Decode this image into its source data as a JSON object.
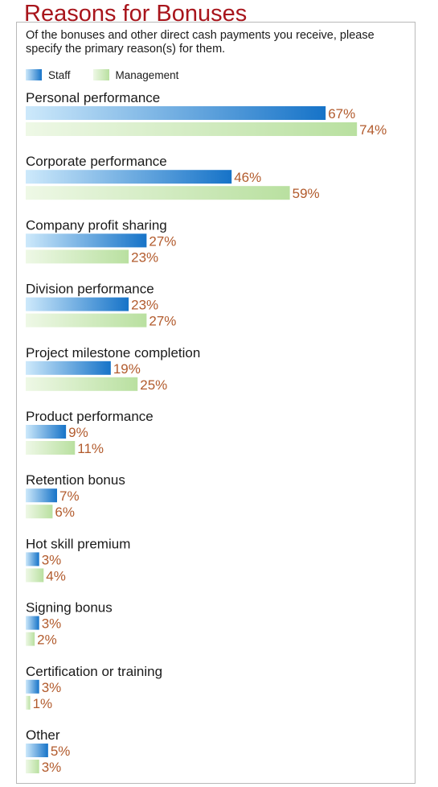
{
  "title": "Reasons for Bonuses",
  "subtitle": "Of the bonuses and other direct cash payments you receive, please specify the primary reason(s) for them.",
  "colors": {
    "title": "#a8151c",
    "staff_dark": "#1673c8",
    "staff_light": "#cde9fb",
    "mgmt_dark": "#b9e0a0",
    "mgmt_light": "#eef8e6",
    "value_label": "#b25b2d"
  },
  "chart_data": {
    "type": "bar",
    "orientation": "horizontal",
    "categories": [
      "Personal performance",
      "Corporate performance",
      "Company profit sharing",
      "Division performance",
      "Project milestone completion",
      "Product performance",
      "Retention bonus",
      "Hot skill premium",
      "Signing bonus",
      "Certification or training",
      "Other"
    ],
    "series": [
      {
        "name": "Staff",
        "values": [
          67,
          46,
          27,
          23,
          19,
          9,
          7,
          3,
          3,
          3,
          5
        ]
      },
      {
        "name": "Management",
        "values": [
          74,
          59,
          23,
          27,
          25,
          11,
          6,
          4,
          2,
          1,
          3
        ]
      }
    ],
    "value_suffix": "%",
    "legend_position": "top-left",
    "xlim": [
      0,
      100
    ],
    "grid": false
  }
}
